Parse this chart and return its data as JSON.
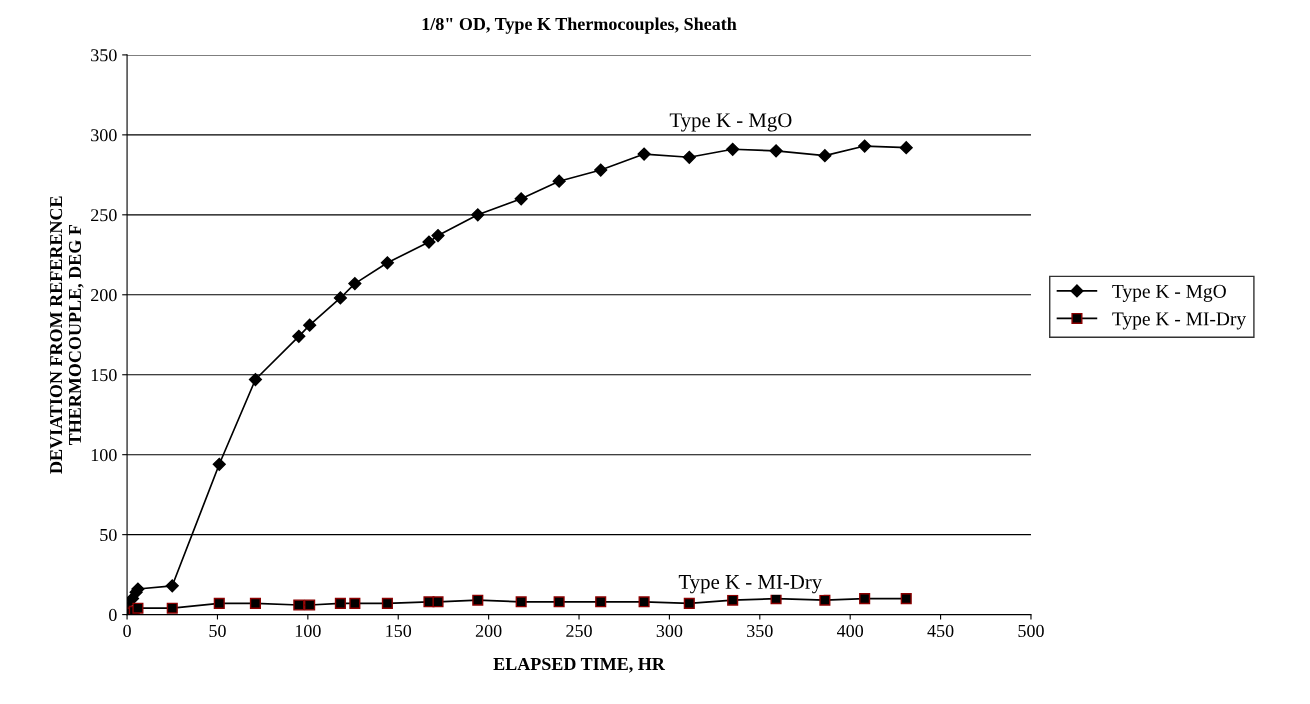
{
  "chart_data": {
    "type": "line",
    "title": "1/8\" OD, Type K Thermocouples, Sheath",
    "xlabel": "ELAPSED TIME, HR",
    "ylabel": "DEVIATION FROM REFERENCE\nTHERMOCOUPLE, DEG F",
    "xlim": [
      0,
      500
    ],
    "xticks": [
      0,
      50,
      100,
      150,
      200,
      250,
      300,
      350,
      400,
      450,
      500
    ],
    "ylim": [
      0,
      350
    ],
    "yticks": [
      0,
      50,
      100,
      150,
      200,
      250,
      300,
      350
    ],
    "grid": "y",
    "legend": "right",
    "series": [
      {
        "name": "Type K - MgO",
        "color": "#000000",
        "marker": "diamond",
        "x": [
          0,
          3,
          5,
          6,
          25,
          51,
          71,
          95,
          101,
          118,
          126,
          144,
          167,
          172,
          194,
          218,
          239,
          262,
          286,
          311,
          335,
          359,
          386,
          408,
          431
        ],
        "values": [
          7,
          10,
          14,
          16,
          18,
          94,
          147,
          174,
          181,
          198,
          207,
          220,
          233,
          237,
          250,
          260,
          271,
          278,
          288,
          286,
          291,
          290,
          287,
          293,
          292
        ]
      },
      {
        "name": "Type K - MI-Dry",
        "color": "#000000",
        "marker": "square",
        "x": [
          0,
          2,
          4,
          6,
          25,
          51,
          71,
          95,
          101,
          118,
          126,
          144,
          167,
          172,
          194,
          218,
          239,
          262,
          286,
          311,
          335,
          359,
          386,
          408,
          431
        ],
        "values": [
          0,
          1,
          2,
          4,
          4,
          7,
          7,
          6,
          6,
          7,
          7,
          7,
          8,
          8,
          9,
          8,
          8,
          8,
          8,
          7,
          9,
          10,
          9,
          10,
          10
        ]
      }
    ],
    "annotations": [
      "Type K - MgO",
      "Type K - MI-Dry"
    ]
  }
}
